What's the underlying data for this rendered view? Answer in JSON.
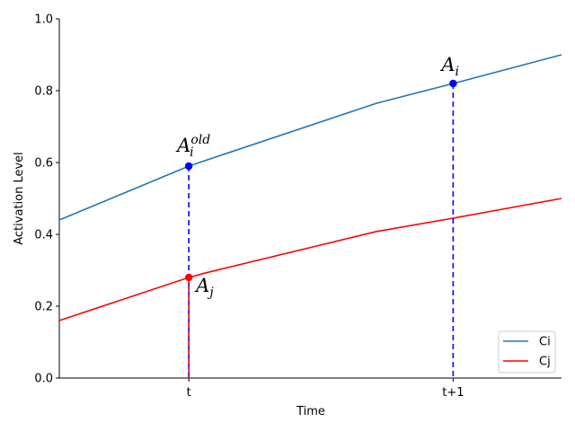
{
  "chart_data": {
    "type": "line",
    "xlabel": "Time",
    "ylabel": "Activation Level",
    "xlim": [
      0,
      1.9
    ],
    "ylim": [
      0,
      1
    ],
    "x_ticks": [
      {
        "value": 0.49,
        "label": "t"
      },
      {
        "value": 1.49,
        "label": "t+1"
      }
    ],
    "y_ticks": [
      {
        "value": 0.0,
        "label": "0.0"
      },
      {
        "value": 0.2,
        "label": "0.2"
      },
      {
        "value": 0.4,
        "label": "0.4"
      },
      {
        "value": 0.6,
        "label": "0.6"
      },
      {
        "value": 0.8,
        "label": "0.8"
      },
      {
        "value": 1.0,
        "label": "1.0"
      }
    ],
    "series": [
      {
        "name": "Ci",
        "color": "#1f77b4",
        "x": [
          0,
          0.49,
          0.55,
          1.2,
          1.49,
          1.9
        ],
        "y": [
          0.44,
          0.59,
          0.605,
          0.765,
          0.82,
          0.9
        ]
      },
      {
        "name": "Cj",
        "color": "#ff0000",
        "x": [
          0,
          0.49,
          0.55,
          1.2,
          1.49,
          1.9
        ],
        "y": [
          0.16,
          0.28,
          0.292,
          0.408,
          0.445,
          0.5
        ]
      }
    ],
    "markers": [
      {
        "x": 0.49,
        "y": 0.59,
        "color": "#0000ff",
        "line_color": "#0000ff"
      },
      {
        "x": 1.49,
        "y": 0.82,
        "color": "#0000ff",
        "line_color": "#0000ff"
      },
      {
        "x": 0.49,
        "y": 0.28,
        "color": "#ff0000",
        "line_color": "#ff0000"
      }
    ],
    "annotations": [
      {
        "base": "A",
        "sub": "i",
        "sup": "old",
        "x": 0.49,
        "y": 0.59
      },
      {
        "base": "A",
        "sub": "i",
        "sup": "",
        "x": 1.49,
        "y": 0.82
      },
      {
        "base": "A",
        "sub": "j",
        "sup": "",
        "x": 0.49,
        "y": 0.28
      }
    ],
    "legend": {
      "position": "lower-right",
      "items": [
        "Ci",
        "Cj"
      ]
    }
  }
}
